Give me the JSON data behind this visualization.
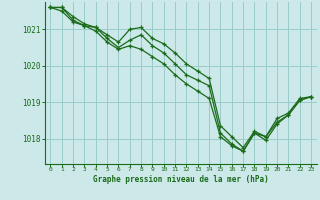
{
  "title": "Graphe pression niveau de la mer (hPa)",
  "bg_color": "#cce8e8",
  "grid_color": "#99cccc",
  "line_color": "#1a6b1a",
  "xlim": [
    -0.5,
    23.5
  ],
  "ylim": [
    1017.3,
    1021.75
  ],
  "yticks": [
    1018,
    1019,
    1020,
    1021
  ],
  "xticks": [
    0,
    1,
    2,
    3,
    4,
    5,
    6,
    7,
    8,
    9,
    10,
    11,
    12,
    13,
    14,
    15,
    16,
    17,
    18,
    19,
    20,
    21,
    22,
    23
  ],
  "series": [
    [
      1021.6,
      1021.6,
      1021.35,
      1021.15,
      1021.05,
      1020.85,
      1020.65,
      1021.0,
      1021.05,
      1020.75,
      1020.6,
      1020.35,
      1020.05,
      1019.85,
      1019.65,
      1018.35,
      1018.05,
      1017.75,
      1018.2,
      1018.05,
      1018.55,
      1018.7,
      1019.1,
      1019.15
    ],
    [
      1021.6,
      1021.6,
      1021.25,
      1021.1,
      1021.05,
      1020.75,
      1020.5,
      1020.7,
      1020.85,
      1020.55,
      1020.35,
      1020.05,
      1019.75,
      1019.6,
      1019.45,
      1018.15,
      1017.85,
      1017.65,
      1018.15,
      1017.95,
      1018.4,
      1018.65,
      1019.05,
      1019.15
    ],
    [
      1021.6,
      1021.5,
      1021.2,
      1021.1,
      1020.95,
      1020.65,
      1020.45,
      1020.55,
      1020.45,
      1020.25,
      1020.05,
      1019.75,
      1019.5,
      1019.3,
      1019.1,
      1018.05,
      1017.8,
      1017.65,
      1018.15,
      1018.05,
      1018.45,
      1018.65,
      1019.05,
      1019.15
    ]
  ]
}
